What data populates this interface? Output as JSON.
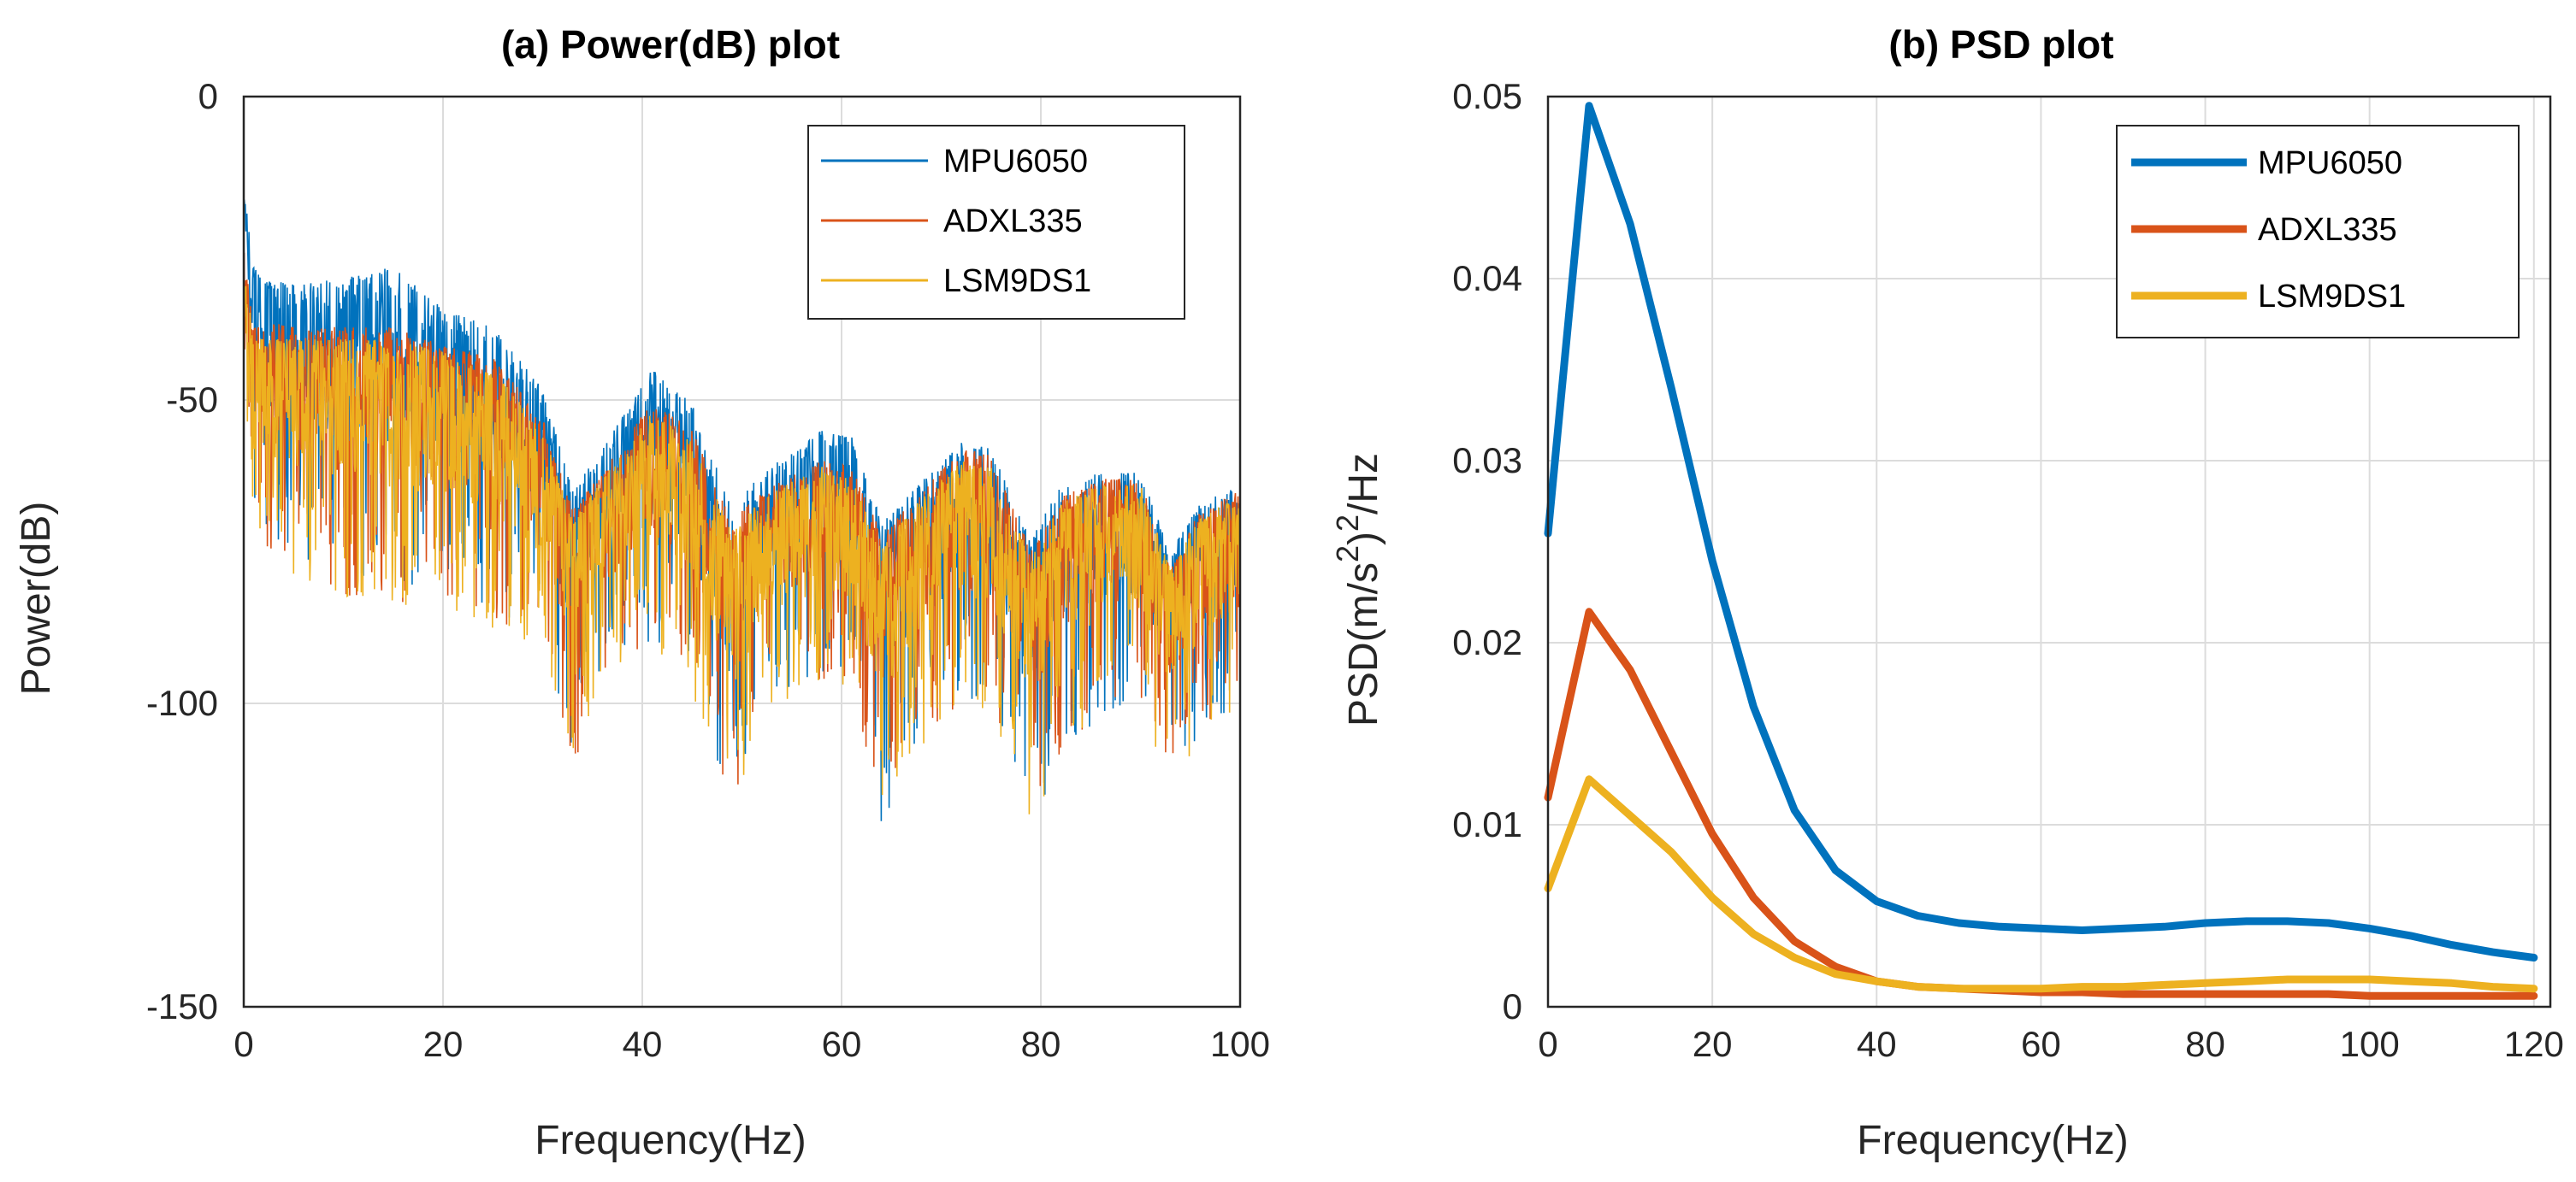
{
  "chart_data": [
    {
      "type": "line",
      "id": "power",
      "title": "(a) Power(dB) plot",
      "xlabel": "Frequency(Hz)",
      "ylabel": "Power(dB)",
      "xlim": [
        0,
        100
      ],
      "ylim": [
        -150,
        0
      ],
      "xticks": [
        0,
        20,
        40,
        60,
        80,
        100
      ],
      "yticks": [
        0,
        -50,
        -100,
        -150
      ],
      "grid": true,
      "legend_position": "top-right",
      "envelope_hz": [
        0,
        1,
        2,
        5,
        10,
        15,
        20,
        25,
        30,
        33,
        36,
        41,
        45,
        49,
        52,
        58,
        61,
        64,
        67,
        72,
        75,
        79,
        82,
        86,
        90,
        93,
        96,
        100
      ],
      "series": [
        {
          "name": "MPU6050",
          "color": "#0072BD",
          "upper_db": [
            -15,
            -28,
            -30,
            -31,
            -30,
            -28,
            -35,
            -38,
            -48,
            -65,
            -58,
            -45,
            -50,
            -68,
            -62,
            -55,
            -56,
            -70,
            -65,
            -57,
            -58,
            -73,
            -64,
            -62,
            -62,
            -75,
            -67,
            -63
          ],
          "lower_db": [
            -30,
            -70,
            -72,
            -75,
            -80,
            -82,
            -80,
            -85,
            -88,
            -110,
            -95,
            -90,
            -95,
            -120,
            -100,
            -95,
            -96,
            -120,
            -110,
            -100,
            -102,
            -120,
            -110,
            -102,
            -100,
            -110,
            -106,
            -100
          ]
        },
        {
          "name": "ADXL335",
          "color": "#D95319",
          "upper_db": [
            -25,
            -38,
            -37,
            -38,
            -38,
            -38,
            -41,
            -43,
            -53,
            -68,
            -62,
            -50,
            -55,
            -70,
            -65,
            -60,
            -61,
            -72,
            -67,
            -58,
            -59,
            -75,
            -66,
            -63,
            -63,
            -78,
            -68,
            -65
          ],
          "lower_db": [
            -45,
            -75,
            -75,
            -78,
            -82,
            -84,
            -82,
            -86,
            -90,
            -112,
            -96,
            -92,
            -96,
            -118,
            -100,
            -96,
            -98,
            -118,
            -108,
            -100,
            -102,
            -118,
            -108,
            -102,
            -100,
            -112,
            -104,
            -100
          ]
        },
        {
          "name": "LSM9DS1",
          "color": "#EDB120",
          "upper_db": [
            -28,
            -40,
            -40,
            -40,
            -40,
            -40,
            -42,
            -45,
            -55,
            -70,
            -63,
            -52,
            -57,
            -72,
            -66,
            -61,
            -63,
            -74,
            -68,
            -60,
            -61,
            -76,
            -67,
            -64,
            -64,
            -78,
            -69,
            -66
          ],
          "lower_db": [
            -48,
            -78,
            -77,
            -80,
            -84,
            -86,
            -84,
            -88,
            -92,
            -110,
            -97,
            -94,
            -98,
            -120,
            -102,
            -98,
            -100,
            -120,
            -110,
            -101,
            -103,
            -122,
            -110,
            -104,
            -102,
            -114,
            -106,
            -102
          ]
        }
      ]
    },
    {
      "type": "line",
      "id": "psd",
      "title": "(b) PSD plot",
      "xlabel": "Frequency(Hz)",
      "ylabel_parts": {
        "base": "PSD(m/s",
        "sup1": "2",
        "mid": ")",
        "sup2": "2",
        "end": "/Hz"
      },
      "xlim": [
        0,
        122
      ],
      "ylim": [
        0,
        0.05
      ],
      "xticks": [
        0,
        20,
        40,
        60,
        80,
        100,
        120
      ],
      "yticks": [
        0,
        0.01,
        0.02,
        0.03,
        0.04,
        0.05
      ],
      "ytick_labels": [
        "0",
        "0.01",
        "0.02",
        "0.03",
        "0.04",
        "0.05"
      ],
      "grid": true,
      "legend_position": "top-right",
      "x": [
        0,
        5,
        10,
        15,
        20,
        25,
        30,
        35,
        40,
        45,
        50,
        55,
        60,
        65,
        70,
        75,
        80,
        85,
        90,
        95,
        100,
        105,
        110,
        115,
        120
      ],
      "series": [
        {
          "name": "MPU6050",
          "color": "#0072BD",
          "values": [
            0.026,
            0.0495,
            0.043,
            0.034,
            0.0245,
            0.0165,
            0.0108,
            0.0075,
            0.0058,
            0.005,
            0.0046,
            0.0044,
            0.0043,
            0.0042,
            0.0043,
            0.0044,
            0.0046,
            0.0047,
            0.0047,
            0.0046,
            0.0043,
            0.0039,
            0.0034,
            0.003,
            0.0027
          ]
        },
        {
          "name": "ADXL335",
          "color": "#D95319",
          "values": [
            0.0115,
            0.0217,
            0.0185,
            0.014,
            0.0095,
            0.006,
            0.0036,
            0.0022,
            0.0014,
            0.0011,
            0.001,
            0.0009,
            0.0008,
            0.0008,
            0.0007,
            0.0007,
            0.0007,
            0.0007,
            0.0007,
            0.0007,
            0.0006,
            0.0006,
            0.0006,
            0.0006,
            0.0006
          ]
        },
        {
          "name": "LSM9DS1",
          "color": "#EDB120",
          "values": [
            0.0065,
            0.0125,
            0.0105,
            0.0085,
            0.006,
            0.004,
            0.0027,
            0.0018,
            0.0014,
            0.0011,
            0.001,
            0.001,
            0.001,
            0.0011,
            0.0011,
            0.0012,
            0.0013,
            0.0014,
            0.0015,
            0.0015,
            0.0015,
            0.0014,
            0.0013,
            0.0011,
            0.001
          ]
        }
      ]
    }
  ]
}
